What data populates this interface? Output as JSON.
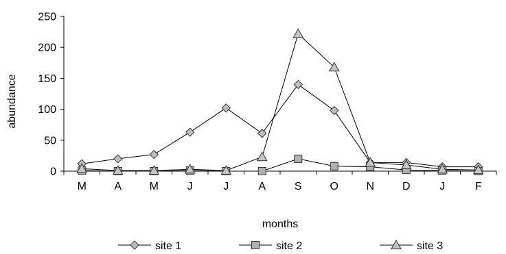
{
  "chart_data": {
    "type": "line",
    "xlabel": "months",
    "ylabel": "abundance",
    "categories": [
      "M",
      "A",
      "M",
      "J",
      "J",
      "A",
      "S",
      "O",
      "N",
      "D",
      "J",
      "F"
    ],
    "ylim": [
      0,
      250
    ],
    "yticks": [
      0,
      50,
      100,
      150,
      200,
      250
    ],
    "grid": false,
    "legend_position": "bottom",
    "series": [
      {
        "name": "site 1",
        "marker": "diamond",
        "color": "#bdbdbd",
        "values": [
          12,
          20,
          27,
          63,
          102,
          61,
          140,
          98,
          14,
          14,
          7,
          7
        ]
      },
      {
        "name": "site 2",
        "marker": "square",
        "color": "#b0b0b0",
        "values": [
          1,
          0,
          0,
          1,
          0,
          0,
          20,
          8,
          7,
          2,
          1,
          0
        ]
      },
      {
        "name": "site 3",
        "marker": "triangle",
        "color": "#c4c4c4",
        "values": [
          4,
          1,
          1,
          3,
          1,
          23,
          222,
          168,
          14,
          10,
          3,
          2
        ]
      }
    ]
  }
}
